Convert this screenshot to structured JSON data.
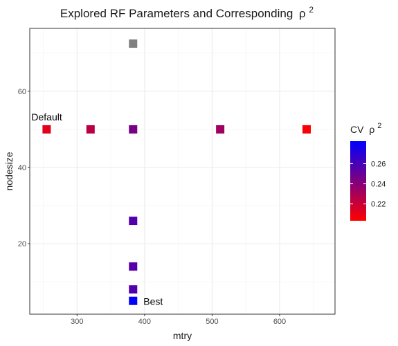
{
  "chart_data": {
    "type": "scatter",
    "title": "Explored RF Parameters and Corresponding",
    "title_symbol": "ρ",
    "title_superscript": "2",
    "xlabel": "mtry",
    "ylabel": "nodesize",
    "xlim": [
      230,
      682
    ],
    "ylim": [
      1.5,
      76.5
    ],
    "x_ticks": [
      300,
      400,
      500,
      600
    ],
    "y_ticks": [
      20,
      40,
      60
    ],
    "grid": true,
    "points": [
      {
        "x": 255,
        "y": 50,
        "cv": 0.212
      },
      {
        "x": 320,
        "y": 50,
        "cv": 0.225
      },
      {
        "x": 383,
        "y": 50,
        "cv": 0.245
      },
      {
        "x": 512,
        "y": 50,
        "cv": 0.233
      },
      {
        "x": 640,
        "y": 50,
        "cv": 0.205
      },
      {
        "x": 383,
        "y": 26,
        "cv": 0.257
      },
      {
        "x": 383,
        "y": 14,
        "cv": 0.255
      },
      {
        "x": 383,
        "y": 8,
        "cv": 0.257
      },
      {
        "x": 383,
        "y": 5,
        "cv": 0.282
      },
      {
        "x": 383,
        "y": 72.5,
        "cv": null
      }
    ],
    "na_color": "#808080",
    "annotations": [
      {
        "text": "Default",
        "x": 255,
        "y": 50
      },
      {
        "text": "Best",
        "x": 383,
        "y": 5
      }
    ],
    "legend": {
      "title": "CV",
      "title_symbol": "ρ",
      "title_superscript": "2",
      "placement": "right",
      "low_color": "#ff0000",
      "high_color": "#0000ff",
      "range": [
        0.2033,
        0.2823
      ],
      "ticks": [
        0.22,
        0.24,
        0.26
      ]
    }
  }
}
